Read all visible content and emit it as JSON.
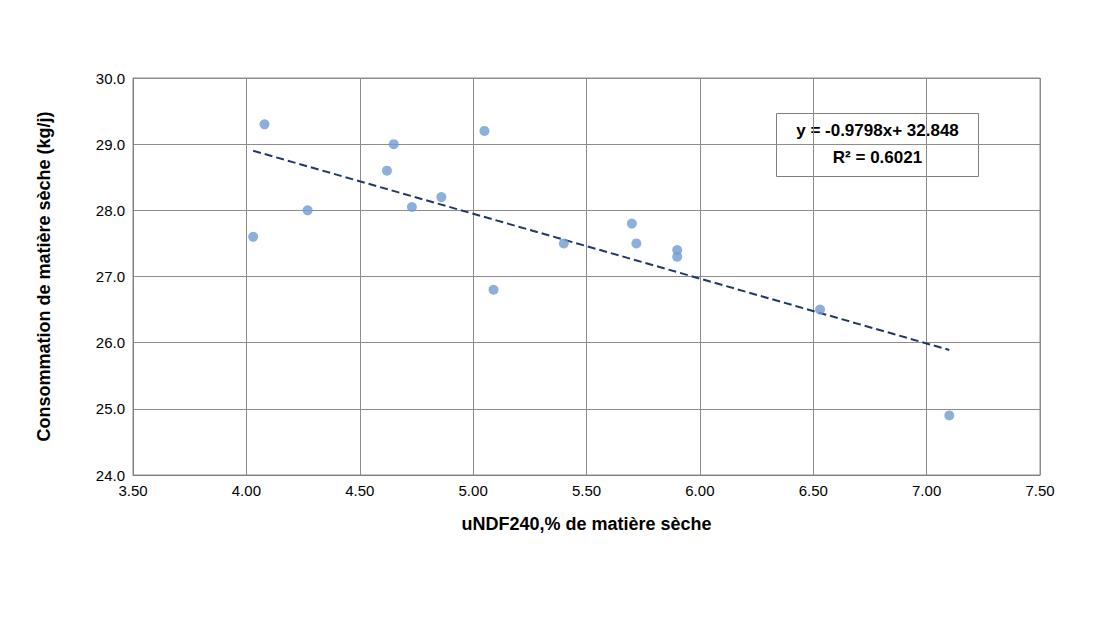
{
  "chart_data": {
    "type": "scatter",
    "x_label": "uNDF240,% de matière sèche",
    "y_label": "Consommation de matière sèche (kg/j)",
    "x": [
      4.03,
      4.08,
      4.27,
      4.62,
      4.65,
      4.73,
      4.86,
      5.05,
      5.09,
      5.4,
      5.7,
      5.72,
      5.9,
      5.9,
      6.53,
      7.1
    ],
    "values": [
      27.6,
      29.3,
      28.0,
      28.6,
      29.0,
      28.05,
      28.2,
      29.2,
      26.8,
      27.5,
      27.8,
      27.5,
      27.4,
      27.3,
      26.5,
      24.9
    ],
    "color": "#6f9bd3",
    "marker": "circle",
    "trendline": {
      "x": [
        4.03,
        7.1
      ],
      "values": [
        28.9,
        25.89
      ],
      "color": "#1f3864",
      "line_style": "dashed"
    },
    "annotations": [
      "y = -0.9798x+ 32.848",
      "R² = 0.6021"
    ],
    "xlim": [
      3.5,
      7.5
    ],
    "xticks": [
      {
        "value": 3.5,
        "label": "3.50"
      },
      {
        "value": 4.0,
        "label": "4.00"
      },
      {
        "value": 4.5,
        "label": "4.50"
      },
      {
        "value": 5.0,
        "label": "5.00"
      },
      {
        "value": 5.5,
        "label": "5.50"
      },
      {
        "value": 6.0,
        "label": "6.00"
      },
      {
        "value": 6.5,
        "label": "6.50"
      },
      {
        "value": 7.0,
        "label": "7.00"
      },
      {
        "value": 7.5,
        "label": "7.50"
      }
    ],
    "ylim": [
      24,
      30
    ],
    "yticks": [
      {
        "value": 24,
        "label": "24.0"
      },
      {
        "value": 25,
        "label": "25.0"
      },
      {
        "value": 26,
        "label": "26.0"
      },
      {
        "value": 27,
        "label": "27.0"
      },
      {
        "value": 28,
        "label": "28.0"
      },
      {
        "value": 29,
        "label": "29.0"
      },
      {
        "value": 30,
        "label": "30.0"
      }
    ],
    "grid": true
  }
}
